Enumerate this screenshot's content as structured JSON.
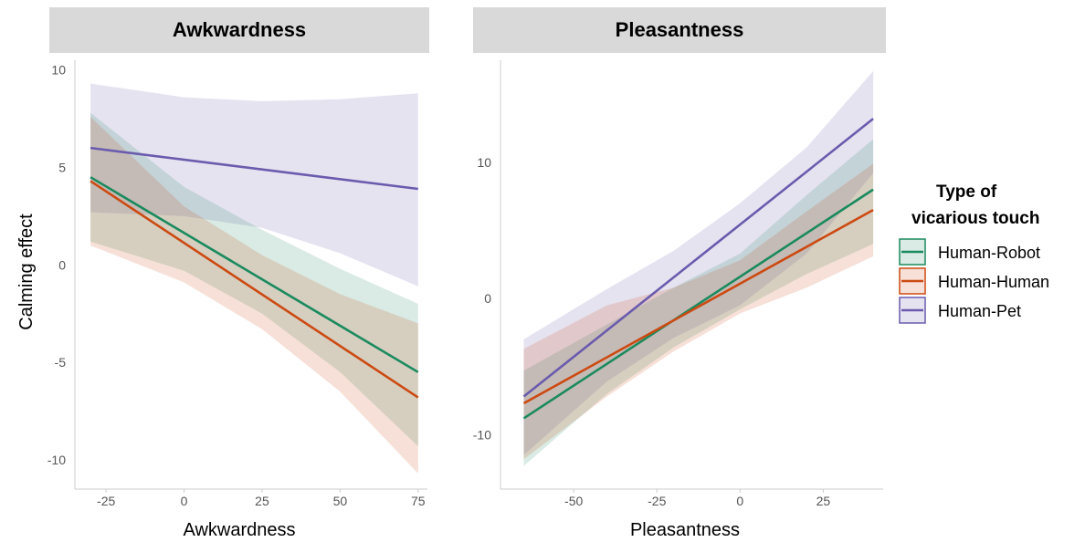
{
  "colors": {
    "Human-Robot": "#1b8a5e",
    "Human-Human": "#cc4a12",
    "Human-Pet": "#6a5bad",
    "strip_bg": "#d9d9d9",
    "axis": "#cccccc"
  },
  "ylabel": "Calming effect",
  "legend": {
    "title_line1": "Type of",
    "title_line2": "vicarious touch",
    "entries": [
      "Human-Robot",
      "Human-Human",
      "Human-Pet"
    ],
    "position": "right"
  },
  "chart_data": [
    {
      "type": "line",
      "title": "Awkwardness",
      "xlabel": "Awkwardness",
      "ylabel": "Calming effect",
      "xlim": [
        -35,
        78
      ],
      "ylim": [
        -11.5,
        10.5
      ],
      "xticks": [
        "-25",
        "0",
        "25",
        "50",
        "75"
      ],
      "yticks": [
        "10",
        "5",
        "0",
        "-5",
        "-10"
      ],
      "series": [
        {
          "name": "Human-Robot",
          "x": [
            -30,
            75
          ],
          "y": [
            4.5,
            -5.5
          ],
          "band": {
            "x": [
              -30,
              0,
              25,
              50,
              75
            ],
            "lower": [
              1.2,
              -0.3,
              -2.5,
              -5.5,
              -9.3
            ],
            "upper": [
              7.8,
              4.0,
              1.8,
              -0.2,
              -2.0
            ]
          }
        },
        {
          "name": "Human-Human",
          "x": [
            -30,
            75
          ],
          "y": [
            4.3,
            -6.8
          ],
          "band": {
            "x": [
              -30,
              0,
              25,
              50,
              75
            ],
            "lower": [
              1.0,
              -0.9,
              -3.3,
              -6.5,
              -10.7
            ],
            "upper": [
              7.6,
              3.0,
              0.5,
              -1.5,
              -3.0
            ]
          }
        },
        {
          "name": "Human-Pet",
          "x": [
            -30,
            75
          ],
          "y": [
            6.0,
            3.9
          ],
          "band": {
            "x": [
              -30,
              0,
              25,
              50,
              75
            ],
            "lower": [
              2.7,
              2.5,
              1.9,
              0.6,
              -1.1
            ],
            "upper": [
              9.3,
              8.6,
              8.4,
              8.5,
              8.8
            ]
          }
        }
      ]
    },
    {
      "type": "line",
      "title": "Pleasantness",
      "xlabel": "Pleasantness",
      "ylabel": "",
      "xlim": [
        -72,
        43
      ],
      "ylim": [
        -14,
        17.5
      ],
      "xticks": [
        "-50",
        "-25",
        "0",
        "25"
      ],
      "yticks": [
        "10",
        "0",
        "-10"
      ],
      "series": [
        {
          "name": "Human-Robot",
          "x": [
            -65,
            40
          ],
          "y": [
            -8.8,
            8.0
          ],
          "band": {
            "x": [
              -65,
              -40,
              -20,
              0,
              20,
              40
            ],
            "lower": [
              -12.3,
              -7.0,
              -3.6,
              -0.8,
              1.8,
              4.0
            ],
            "upper": [
              -5.3,
              -1.9,
              0.8,
              3.3,
              7.6,
              11.7
            ]
          }
        },
        {
          "name": "Human-Human",
          "x": [
            -65,
            40
          ],
          "y": [
            -7.7,
            6.5
          ],
          "band": {
            "x": [
              -65,
              -40,
              -20,
              0,
              20,
              40
            ],
            "lower": [
              -11.8,
              -7.2,
              -3.9,
              -1.1,
              0.8,
              3.1
            ],
            "upper": [
              -3.7,
              -0.5,
              0.8,
              2.8,
              6.4,
              9.9
            ]
          }
        },
        {
          "name": "Human-Pet",
          "x": [
            -65,
            40
          ],
          "y": [
            -7.2,
            13.2
          ],
          "band": {
            "x": [
              -65,
              -40,
              -20,
              0,
              20,
              40
            ],
            "lower": [
              -11.5,
              -6.1,
              -2.9,
              -0.5,
              3.3,
              9.2
            ],
            "upper": [
              -3.0,
              0.7,
              3.5,
              7.0,
              11.1,
              16.7
            ]
          }
        }
      ]
    }
  ]
}
